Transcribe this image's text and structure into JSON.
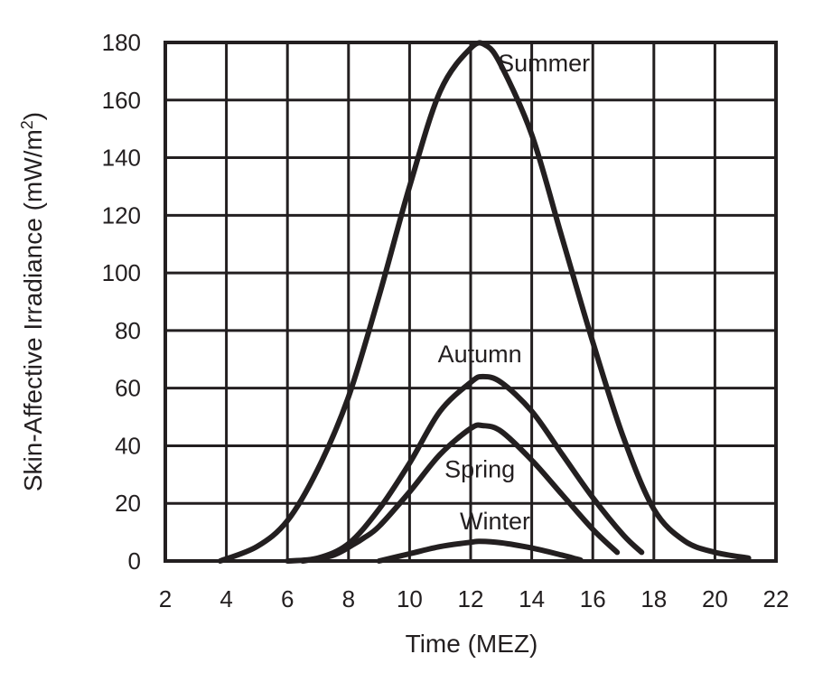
{
  "chart_data": {
    "type": "line",
    "xlabel": "Time (MEZ)",
    "ylabel_main": "Skin-Affective Irradiance (mW/m",
    "ylabel_sup": "2",
    "ylabel_close": ")",
    "xlim": [
      2,
      22
    ],
    "ylim": [
      0,
      180
    ],
    "xticks": [
      "2",
      "4",
      "6",
      "8",
      "10",
      "12",
      "14",
      "16",
      "18",
      "20",
      "22"
    ],
    "yticks": [
      "0",
      "20",
      "40",
      "60",
      "80",
      "100",
      "120",
      "140",
      "160",
      "180"
    ],
    "grid": true,
    "series": [
      {
        "name": "Summer",
        "x": [
          3.8,
          5,
          6,
          7,
          8,
          9,
          10,
          11,
          12,
          12.5,
          13,
          14,
          15,
          16,
          17,
          18,
          19,
          20,
          21.1
        ],
        "y": [
          0,
          5,
          14,
          32,
          57,
          92,
          130,
          163,
          178,
          179,
          172,
          148,
          112,
          76,
          43,
          18,
          7,
          3,
          1
        ]
      },
      {
        "name": "Autumn",
        "x": [
          6,
          7,
          8,
          9,
          10,
          11,
          12,
          12.4,
          13,
          14,
          15,
          16,
          17,
          17.6
        ],
        "y": [
          0,
          1,
          6,
          18,
          34,
          52,
          62,
          64,
          62,
          52,
          37,
          22,
          9,
          3
        ]
      },
      {
        "name": "Spring",
        "x": [
          6.5,
          7.5,
          8.2,
          8.5,
          9,
          10,
          11,
          12,
          12.4,
          13,
          14,
          15,
          16,
          16.8
        ],
        "y": [
          0,
          2,
          6,
          8,
          12,
          24,
          37,
          46,
          47,
          45,
          35,
          23,
          11,
          3
        ]
      },
      {
        "name": "Winter",
        "x": [
          9,
          10,
          11,
          12,
          12.3,
          13,
          14,
          15,
          15.6
        ],
        "y": [
          0,
          2.5,
          5,
          6.5,
          6.8,
          6.3,
          4.5,
          2,
          0.3
        ]
      }
    ],
    "annotations": [
      {
        "series": "Summer",
        "text": "Summer",
        "x": 14.4,
        "y": 170
      },
      {
        "series": "Autumn",
        "text": "Autumn",
        "x": 12.3,
        "y": 69
      },
      {
        "series": "Spring",
        "text": "Spring",
        "x": 12.3,
        "y": 29
      },
      {
        "series": "Winter",
        "text": "Winter",
        "x": 12.8,
        "y": 11
      }
    ]
  }
}
